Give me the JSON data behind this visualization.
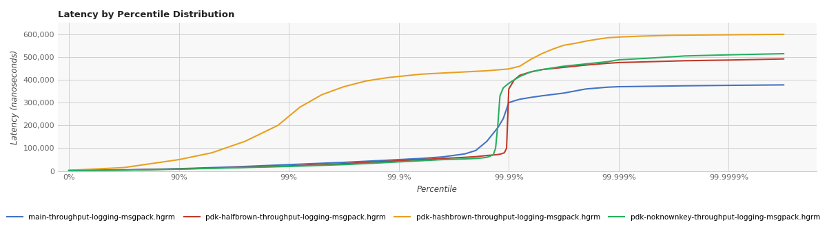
{
  "title": "Latency by Percentile Distribution",
  "xlabel": "Percentile",
  "ylabel": "Latency (nanoseconds)",
  "background_color": "#ffffff",
  "grid_color": "#d0d0d0",
  "percentile_labels": [
    "0%",
    "90%",
    "99%",
    "99.9%",
    "99.99%",
    "99.999%",
    "99.9999%"
  ],
  "percentile_x": [
    0,
    1,
    2,
    3,
    4,
    5,
    6
  ],
  "series": [
    {
      "label": "main-throughput-logging-msgpack.hgrm",
      "color": "#4472C4",
      "points": [
        [
          0,
          2000
        ],
        [
          0.5,
          5000
        ],
        [
          1.0,
          10000
        ],
        [
          1.5,
          18000
        ],
        [
          2.0,
          28000
        ],
        [
          2.5,
          38000
        ],
        [
          2.8,
          45000
        ],
        [
          3.0,
          50000
        ],
        [
          3.2,
          55000
        ],
        [
          3.4,
          62000
        ],
        [
          3.6,
          75000
        ],
        [
          3.7,
          90000
        ],
        [
          3.8,
          130000
        ],
        [
          3.9,
          190000
        ],
        [
          3.95,
          230000
        ],
        [
          4.0,
          300000
        ],
        [
          4.05,
          308000
        ],
        [
          4.1,
          315000
        ],
        [
          4.2,
          323000
        ],
        [
          4.3,
          330000
        ],
        [
          4.5,
          342000
        ],
        [
          4.7,
          360000
        ],
        [
          4.9,
          368000
        ],
        [
          5.0,
          370000
        ],
        [
          5.3,
          372000
        ],
        [
          5.6,
          374000
        ],
        [
          6.0,
          376000
        ],
        [
          6.5,
          378000
        ]
      ]
    },
    {
      "label": "pdk-halfbrown-throughput-logging-msgpack.hgrm",
      "color": "#C0392B",
      "points": [
        [
          0,
          2000
        ],
        [
          0.5,
          4000
        ],
        [
          1.0,
          9000
        ],
        [
          1.5,
          15000
        ],
        [
          2.0,
          22000
        ],
        [
          2.5,
          32000
        ],
        [
          2.8,
          40000
        ],
        [
          3.0,
          45000
        ],
        [
          3.2,
          50000
        ],
        [
          3.4,
          55000
        ],
        [
          3.6,
          60000
        ],
        [
          3.7,
          63000
        ],
        [
          3.8,
          68000
        ],
        [
          3.85,
          70000
        ],
        [
          3.9,
          72000
        ],
        [
          3.93,
          75000
        ],
        [
          3.96,
          80000
        ],
        [
          3.98,
          100000
        ],
        [
          4.0,
          360000
        ],
        [
          4.05,
          400000
        ],
        [
          4.1,
          420000
        ],
        [
          4.2,
          435000
        ],
        [
          4.3,
          445000
        ],
        [
          4.5,
          455000
        ],
        [
          4.7,
          465000
        ],
        [
          4.9,
          473000
        ],
        [
          5.0,
          476000
        ],
        [
          5.3,
          480000
        ],
        [
          5.6,
          484000
        ],
        [
          6.0,
          487000
        ],
        [
          6.5,
          492000
        ]
      ]
    },
    {
      "label": "pdk-hashbrown-throughput-logging-msgpack.hgrm",
      "color": "#E8A020",
      "points": [
        [
          0,
          3000
        ],
        [
          0.5,
          15000
        ],
        [
          1.0,
          50000
        ],
        [
          1.3,
          80000
        ],
        [
          1.6,
          130000
        ],
        [
          1.9,
          200000
        ],
        [
          2.1,
          280000
        ],
        [
          2.3,
          335000
        ],
        [
          2.5,
          370000
        ],
        [
          2.7,
          395000
        ],
        [
          2.9,
          410000
        ],
        [
          3.0,
          415000
        ],
        [
          3.1,
          420000
        ],
        [
          3.2,
          425000
        ],
        [
          3.4,
          430000
        ],
        [
          3.6,
          435000
        ],
        [
          3.8,
          440000
        ],
        [
          4.0,
          448000
        ],
        [
          4.1,
          460000
        ],
        [
          4.2,
          490000
        ],
        [
          4.3,
          515000
        ],
        [
          4.4,
          535000
        ],
        [
          4.5,
          552000
        ],
        [
          4.6,
          560000
        ],
        [
          4.7,
          570000
        ],
        [
          4.8,
          578000
        ],
        [
          4.9,
          585000
        ],
        [
          5.0,
          588000
        ],
        [
          5.2,
          592000
        ],
        [
          5.5,
          596000
        ],
        [
          6.0,
          598000
        ],
        [
          6.5,
          600000
        ]
      ]
    },
    {
      "label": "pdk-noknownkey-throughput-logging-msgpack.hgrm",
      "color": "#27AE60",
      "points": [
        [
          0,
          2000
        ],
        [
          0.5,
          4000
        ],
        [
          1.0,
          8000
        ],
        [
          1.5,
          14000
        ],
        [
          2.0,
          20000
        ],
        [
          2.5,
          28000
        ],
        [
          2.8,
          35000
        ],
        [
          3.0,
          40000
        ],
        [
          3.2,
          45000
        ],
        [
          3.4,
          50000
        ],
        [
          3.6,
          53000
        ],
        [
          3.7,
          55000
        ],
        [
          3.75,
          57000
        ],
        [
          3.8,
          60000
        ],
        [
          3.83,
          65000
        ],
        [
          3.86,
          72000
        ],
        [
          3.88,
          100000
        ],
        [
          3.9,
          200000
        ],
        [
          3.92,
          330000
        ],
        [
          3.95,
          365000
        ],
        [
          4.0,
          385000
        ],
        [
          4.05,
          400000
        ],
        [
          4.1,
          415000
        ],
        [
          4.2,
          435000
        ],
        [
          4.3,
          445000
        ],
        [
          4.5,
          460000
        ],
        [
          4.7,
          470000
        ],
        [
          4.9,
          480000
        ],
        [
          5.0,
          488000
        ],
        [
          5.3,
          496000
        ],
        [
          5.6,
          505000
        ],
        [
          6.0,
          510000
        ],
        [
          6.5,
          515000
        ]
      ]
    }
  ],
  "ylim": [
    0,
    650000
  ],
  "yticks": [
    0,
    100000,
    200000,
    300000,
    400000,
    500000,
    600000
  ],
  "ytick_labels": [
    "0",
    "100,000",
    "200,000",
    "300,000",
    "400,000",
    "500,000",
    "600,000"
  ],
  "xlim_min": -0.1,
  "xlim_max": 6.8,
  "title_fontsize": 9.5,
  "axis_label_fontsize": 8.5,
  "tick_fontsize": 8,
  "legend_fontsize": 7.5,
  "line_width": 1.5
}
